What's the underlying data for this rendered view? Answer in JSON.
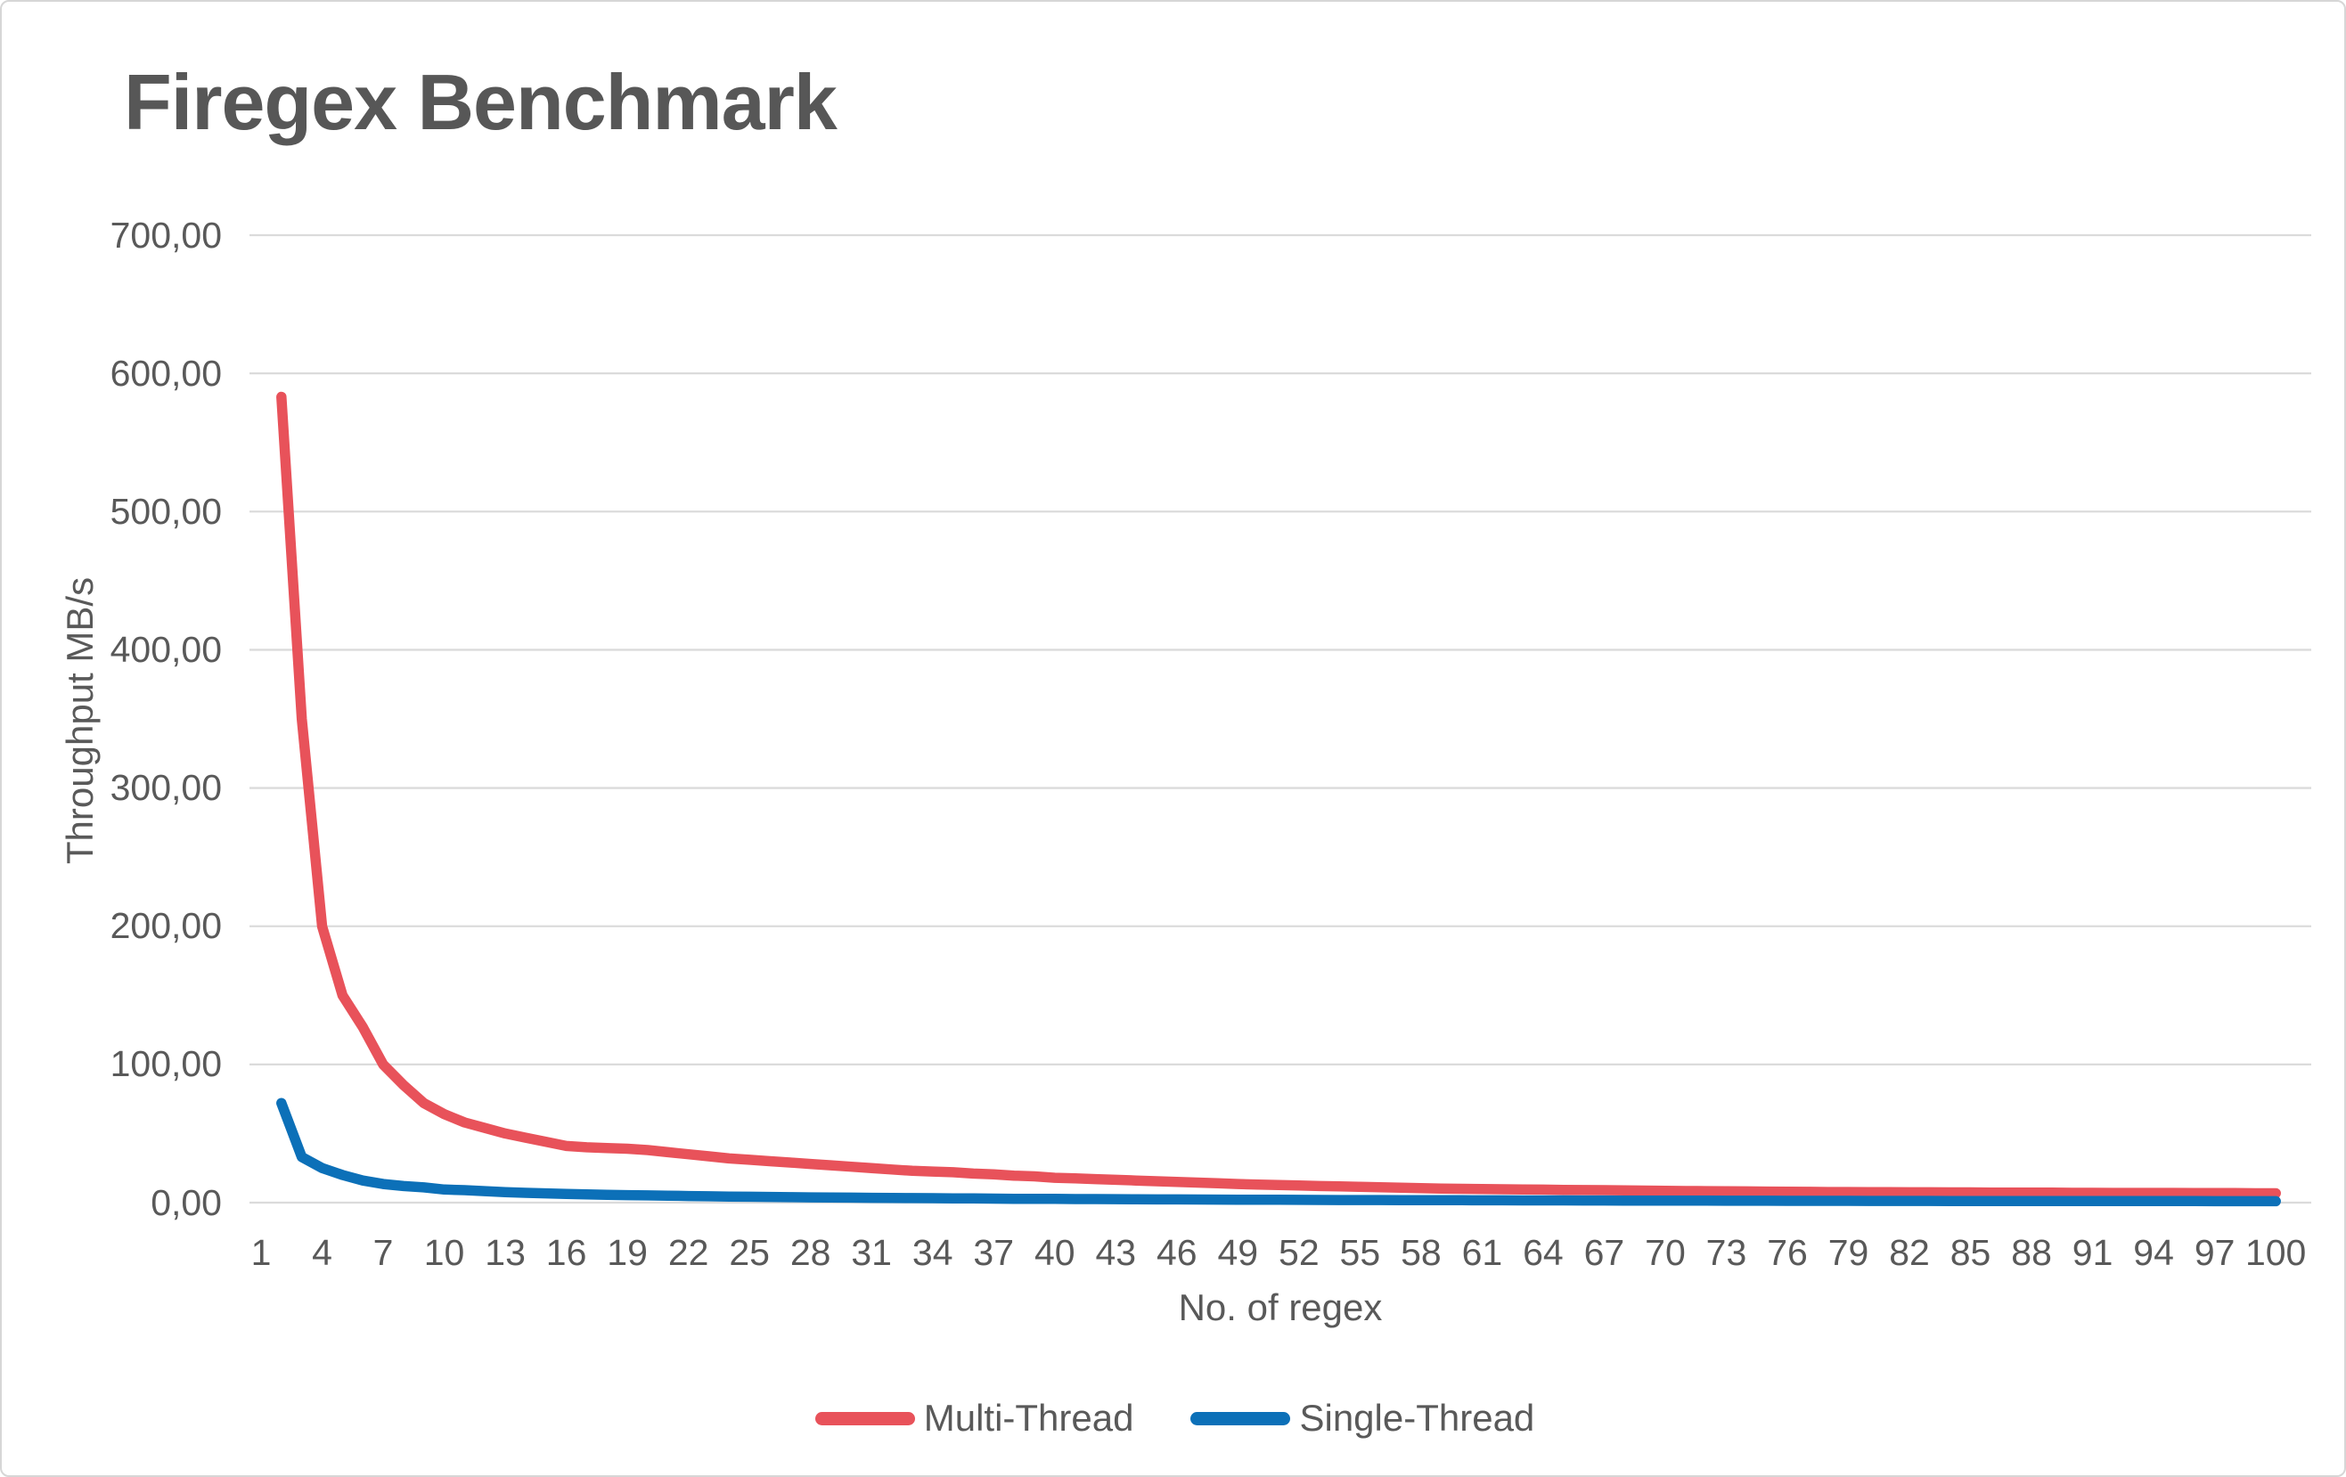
{
  "title": "Firegex Benchmark",
  "colors": {
    "background": "#FFFFFF",
    "border": "#D6D6D6",
    "gridline": "#DBDBDB",
    "text": "#595959",
    "title_text": "#575757",
    "multi_thread_red": "#E8525A",
    "single_thread_blue": "#0C70B8"
  },
  "chart_data": {
    "type": "line",
    "title": "Firegex Benchmark",
    "xlabel": "No. of regex",
    "ylabel": "Throughput MB/s",
    "ylim": [
      0,
      700
    ],
    "grid": true,
    "legend_position": "bottom",
    "y_ticks": [
      {
        "value": 0,
        "label": "0,00"
      },
      {
        "value": 100,
        "label": "100,00"
      },
      {
        "value": 200,
        "label": "200,00"
      },
      {
        "value": 300,
        "label": "300,00"
      },
      {
        "value": 400,
        "label": "400,00"
      },
      {
        "value": 500,
        "label": "500,00"
      },
      {
        "value": 600,
        "label": "600,00"
      },
      {
        "value": 700,
        "label": "700,00"
      }
    ],
    "x_ticks": [
      1,
      4,
      7,
      10,
      13,
      16,
      19,
      22,
      25,
      28,
      31,
      34,
      37,
      40,
      43,
      46,
      49,
      52,
      55,
      58,
      61,
      64,
      67,
      70,
      73,
      76,
      79,
      82,
      85,
      88,
      91,
      94,
      97,
      100
    ],
    "series": [
      {
        "name": "Multi-Thread",
        "color": "#E8525A",
        "x": [
          2,
          3,
          4,
          5,
          6,
          7,
          8,
          9,
          10,
          11,
          12,
          13,
          14,
          15,
          16,
          17,
          18,
          19,
          20,
          21,
          22,
          23,
          24,
          25,
          26,
          27,
          28,
          29,
          30,
          31,
          32,
          33,
          34,
          35,
          36,
          37,
          38,
          39,
          40,
          41,
          42,
          43,
          44,
          45,
          46,
          47,
          48,
          49,
          50,
          51,
          52,
          53,
          54,
          55,
          56,
          57,
          58,
          59,
          60,
          61,
          62,
          63,
          64,
          65,
          66,
          67,
          68,
          69,
          70,
          71,
          72,
          73,
          74,
          75,
          76,
          77,
          78,
          79,
          80,
          81,
          82,
          83,
          84,
          85,
          86,
          87,
          88,
          89,
          90,
          91,
          92,
          93,
          94,
          95,
          96,
          97,
          98,
          99,
          100
        ],
        "values": [
          583,
          350,
          200,
          150,
          127,
          100,
          85,
          72,
          64,
          58,
          54,
          50,
          47,
          44,
          41,
          40,
          39.5,
          39,
          38,
          36.5,
          35,
          33.5,
          32,
          31,
          30,
          29,
          28,
          27,
          26,
          25,
          24,
          23,
          22.5,
          22,
          21,
          20.5,
          19.5,
          19,
          18,
          17.5,
          17,
          16.5,
          16,
          15.5,
          15,
          14.5,
          14,
          13.5,
          13,
          12.7,
          12.4,
          12,
          11.7,
          11.4,
          11.1,
          10.8,
          10.5,
          10.2,
          10,
          9.8,
          9.7,
          9.5,
          9.4,
          9.2,
          9.1,
          9,
          8.8,
          8.7,
          8.5,
          8.4,
          8.3,
          8.2,
          8.1,
          8,
          7.9,
          7.8,
          7.7,
          7.7,
          7.6,
          7.6,
          7.5,
          7.5,
          7.4,
          7.4,
          7.3,
          7.3,
          7.2,
          7.2,
          7.1,
          7.1,
          7,
          7,
          7,
          7,
          6.9,
          6.9,
          6.9,
          6.8,
          6.8
        ]
      },
      {
        "name": "Single-Thread",
        "color": "#0C70B8",
        "x": [
          2,
          3,
          4,
          5,
          6,
          7,
          8,
          9,
          10,
          11,
          12,
          13,
          14,
          15,
          16,
          17,
          18,
          19,
          20,
          21,
          22,
          23,
          24,
          25,
          26,
          27,
          28,
          29,
          30,
          31,
          32,
          33,
          34,
          35,
          36,
          37,
          38,
          39,
          40,
          41,
          42,
          43,
          44,
          45,
          46,
          47,
          48,
          49,
          50,
          51,
          52,
          53,
          54,
          55,
          56,
          57,
          58,
          59,
          60,
          61,
          62,
          63,
          64,
          65,
          66,
          67,
          68,
          69,
          70,
          71,
          72,
          73,
          74,
          75,
          76,
          77,
          78,
          79,
          80,
          81,
          82,
          83,
          84,
          85,
          86,
          87,
          88,
          89,
          90,
          91,
          92,
          93,
          94,
          95,
          96,
          97,
          98,
          99,
          100
        ],
        "values": [
          72,
          33,
          25,
          20,
          16,
          13.5,
          12,
          11,
          9.5,
          9,
          8.3,
          7.6,
          7.1,
          6.7,
          6.3,
          6,
          5.7,
          5.4,
          5.2,
          5,
          4.8,
          4.6,
          4.4,
          4.25,
          4.1,
          3.95,
          3.8,
          3.7,
          3.6,
          3.5,
          3.4,
          3.3,
          3.2,
          3.1,
          3,
          2.9,
          2.8,
          2.75,
          2.7,
          2.6,
          2.55,
          2.5,
          2.4,
          2.35,
          2.3,
          2.25,
          2.2,
          2.15,
          2.1,
          2.05,
          2,
          1.95,
          1.9,
          1.88,
          1.85,
          1.8,
          1.78,
          1.75,
          1.72,
          1.7,
          1.65,
          1.62,
          1.6,
          1.58,
          1.55,
          1.52,
          1.5,
          1.48,
          1.45,
          1.43,
          1.4,
          1.38,
          1.36,
          1.34,
          1.32,
          1.3,
          1.28,
          1.26,
          1.25,
          1.24,
          1.22,
          1.2,
          1.19,
          1.18,
          1.17,
          1.16,
          1.15,
          1.14,
          1.13,
          1.12,
          1.11,
          1.1,
          1.09,
          1.08,
          1.07,
          1.06,
          1.05,
          1.04,
          1.03
        ]
      }
    ]
  }
}
